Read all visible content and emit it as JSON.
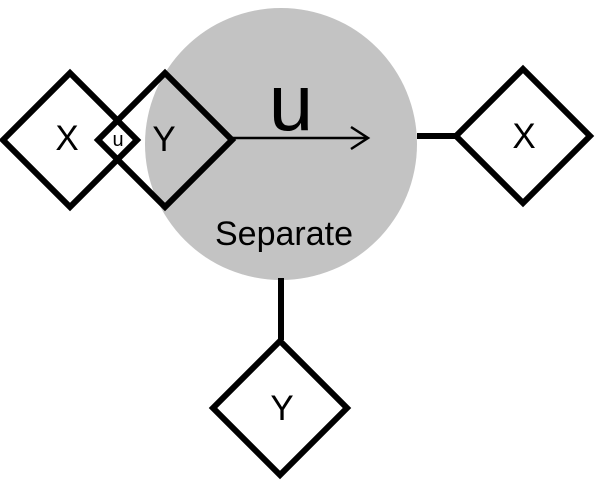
{
  "colors": {
    "circle_fill": "#c3c3c3",
    "stroke": "#000000",
    "background": "#ffffff"
  },
  "process": {
    "arrow_label": "u",
    "name": "Separate"
  },
  "inputs": {
    "x_label": "X",
    "union_label": "u",
    "y_label": "Y"
  },
  "outputs": {
    "x_label": "X",
    "y_label": "Y"
  }
}
